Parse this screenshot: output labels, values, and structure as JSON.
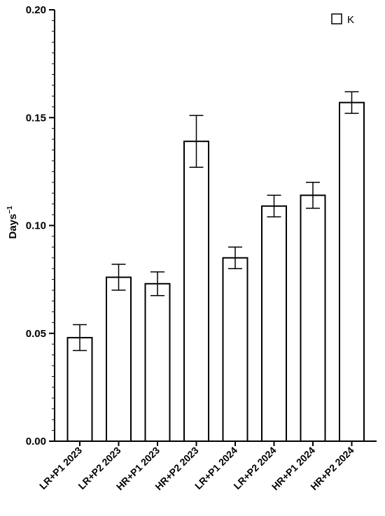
{
  "chart_data": {
    "type": "bar",
    "title": "",
    "xlabel": "",
    "ylabel": "Days",
    "ylabel_superscript": "−1",
    "ylim": [
      0,
      0.2
    ],
    "y_ticks": [
      "0.00",
      "0.05",
      "0.10",
      "0.15",
      "0.20"
    ],
    "y_tick_values": [
      0,
      0.05,
      0.1,
      0.15,
      0.2
    ],
    "y_minor_step": 0.005,
    "grid": false,
    "legend_position": "top-right",
    "categories": [
      "LR+P1 2023",
      "LR+P2 2023",
      "HR+P1 2023",
      "HR+P2 2023",
      "LR+P1 2024",
      "LR+P2 2024",
      "HR+P1 2024",
      "HR+P2 2024"
    ],
    "series": [
      {
        "name": "K",
        "values": [
          0.048,
          0.076,
          0.073,
          0.139,
          0.085,
          0.109,
          0.114,
          0.157
        ],
        "error": [
          0.006,
          0.006,
          0.0055,
          0.012,
          0.005,
          0.005,
          0.006,
          0.005
        ]
      }
    ],
    "colors": {
      "bar_fill": "#ffffff",
      "bar_stroke": "#000000",
      "axis": "#000000"
    }
  }
}
